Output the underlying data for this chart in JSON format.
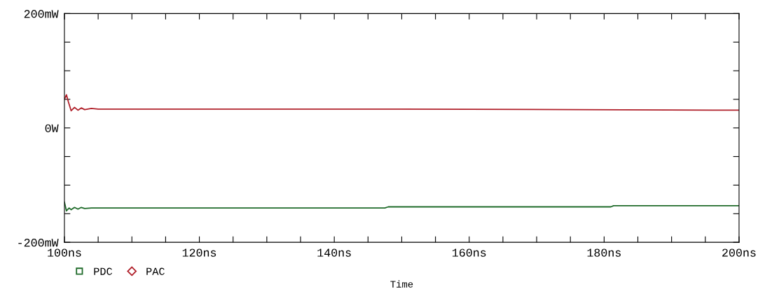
{
  "chart_data": {
    "type": "line",
    "xlabel": "Time",
    "xlim": [
      100,
      200
    ],
    "xticks": [
      {
        "value": 100,
        "label": "100ns"
      },
      {
        "value": 105,
        "label": null
      },
      {
        "value": 110,
        "label": null
      },
      {
        "value": 115,
        "label": null
      },
      {
        "value": 120,
        "label": "120ns"
      },
      {
        "value": 125,
        "label": null
      },
      {
        "value": 130,
        "label": null
      },
      {
        "value": 135,
        "label": null
      },
      {
        "value": 140,
        "label": "140ns"
      },
      {
        "value": 145,
        "label": null
      },
      {
        "value": 150,
        "label": null
      },
      {
        "value": 155,
        "label": null
      },
      {
        "value": 160,
        "label": "160ns"
      },
      {
        "value": 165,
        "label": null
      },
      {
        "value": 170,
        "label": null
      },
      {
        "value": 175,
        "label": null
      },
      {
        "value": 180,
        "label": "180ns"
      },
      {
        "value": 185,
        "label": null
      },
      {
        "value": 190,
        "label": null
      },
      {
        "value": 195,
        "label": null
      },
      {
        "value": 200,
        "label": "200ns"
      }
    ],
    "ylim": [
      -200,
      200
    ],
    "yticks": [
      {
        "value": -200,
        "label": "-200mW"
      },
      {
        "value": -150,
        "label": null
      },
      {
        "value": -100,
        "label": null
      },
      {
        "value": -50,
        "label": null
      },
      {
        "value": 0,
        "label": "0W"
      },
      {
        "value": 50,
        "label": null
      },
      {
        "value": 100,
        "label": null
      },
      {
        "value": 150,
        "label": null
      },
      {
        "value": 200,
        "label": "200mW"
      }
    ],
    "legend": "bottom left",
    "grid": false,
    "marker": "none",
    "line_style": "solid",
    "series": [
      {
        "name": "PDC",
        "color": "#1f6b2a",
        "x": [
          100,
          100.3,
          100.7,
          101,
          101.5,
          102,
          102.5,
          103,
          104,
          120,
          147.5,
          148,
          181,
          181.4,
          200
        ],
        "values": [
          -130,
          -145,
          -140,
          -143,
          -139,
          -142,
          -139,
          -141,
          -140,
          -140,
          -140,
          -138,
          -138,
          -136,
          -136
        ]
      },
      {
        "name": "PAC",
        "color": "#b0202a",
        "x": [
          100,
          100.3,
          100.6,
          101,
          101.5,
          102,
          102.5,
          103,
          104,
          105,
          150,
          200
        ],
        "values": [
          50,
          58,
          45,
          30,
          36,
          31,
          35,
          32,
          34,
          33,
          33,
          31
        ]
      }
    ]
  }
}
